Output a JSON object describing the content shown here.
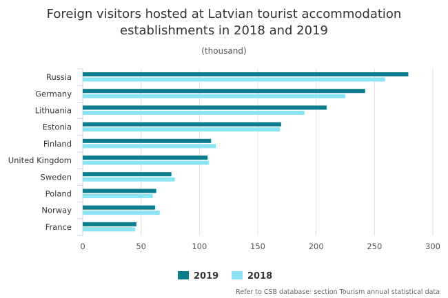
{
  "chart_data": {
    "type": "bar",
    "orientation": "horizontal",
    "title": "Foreign visitors hosted at Latvian tourist accommodation establishments in 2018 and 2019",
    "title_lines": [
      "Foreign visitors hosted at Latvian tourist accommodation",
      "establishments in 2018 and 2019"
    ],
    "subtitle": "(thousand)",
    "categories": [
      "Russia",
      "Germany",
      "Lithuania",
      "Estonia",
      "Finland",
      "United Kingdom",
      "Sweden",
      "Poland",
      "Norway",
      "France"
    ],
    "series": [
      {
        "name": "2019",
        "color": "#0b7d8d",
        "values": [
          279,
          242,
          209,
          170,
          110,
          107,
          76,
          63,
          62,
          46
        ]
      },
      {
        "name": "2018",
        "color": "#8ce3f2",
        "values": [
          259,
          225,
          190,
          169,
          114,
          108,
          79,
          60,
          66,
          45
        ]
      }
    ],
    "xlim": [
      0,
      300
    ],
    "xticks": [
      0,
      50,
      100,
      150,
      200,
      250,
      300
    ],
    "grid": true,
    "legend": "bottom-center",
    "credit": "Refer to CSB database: section Tourism annual statistical data"
  }
}
